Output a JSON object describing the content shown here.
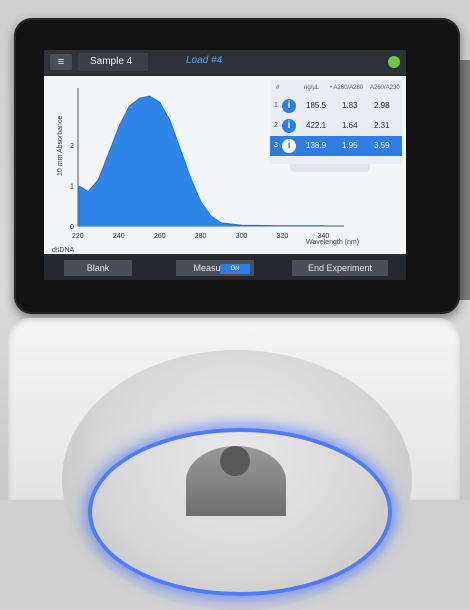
{
  "topbar": {
    "sample_name": "Sample 4",
    "load_label": "Load #4"
  },
  "plot": {
    "ylabel": "10 mm Absorbance",
    "xlabel": "Wavelength (nm)",
    "dye_label": "dsDNA",
    "x_ticks": [
      "220",
      "240",
      "260",
      "280",
      "300",
      "320",
      "340"
    ],
    "y_ticks": [
      "0",
      "1",
      "2"
    ]
  },
  "chart_data": {
    "type": "area",
    "x": [
      220,
      225,
      230,
      235,
      240,
      245,
      250,
      255,
      260,
      265,
      270,
      275,
      280,
      285,
      290,
      300,
      320,
      340
    ],
    "y": [
      1.0,
      0.85,
      1.15,
      1.8,
      2.45,
      2.95,
      3.15,
      3.2,
      3.05,
      2.6,
      1.9,
      1.2,
      0.6,
      0.25,
      0.08,
      0.02,
      0.01,
      0.01
    ],
    "xlim": [
      220,
      350
    ],
    "ylim": [
      0,
      3.4
    ],
    "color": "#2f86e8"
  },
  "table": {
    "headers": [
      "#",
      "ng/µL",
      "• A260/A280",
      "A260/A230"
    ],
    "rows": [
      {
        "num": "1",
        "ng": "185.5",
        "a280": "1.83",
        "a230": "2.98"
      },
      {
        "num": "2",
        "ng": "422.1",
        "a280": "1.64",
        "a230": "2.31"
      },
      {
        "num": "3",
        "ng": "138.9",
        "a280": "1.95",
        "a230": "3.59"
      }
    ],
    "info_icon": "i"
  },
  "bottombar": {
    "blank": "Blank",
    "measure": "Measure",
    "measure_state": "ON",
    "end_experiment": "End Experiment"
  },
  "icons": {
    "menu": "≡"
  },
  "colors": {
    "accent": "#2c7de4",
    "screen_bg": "#2b2e33",
    "plot_bg": "#f4f5f7"
  }
}
